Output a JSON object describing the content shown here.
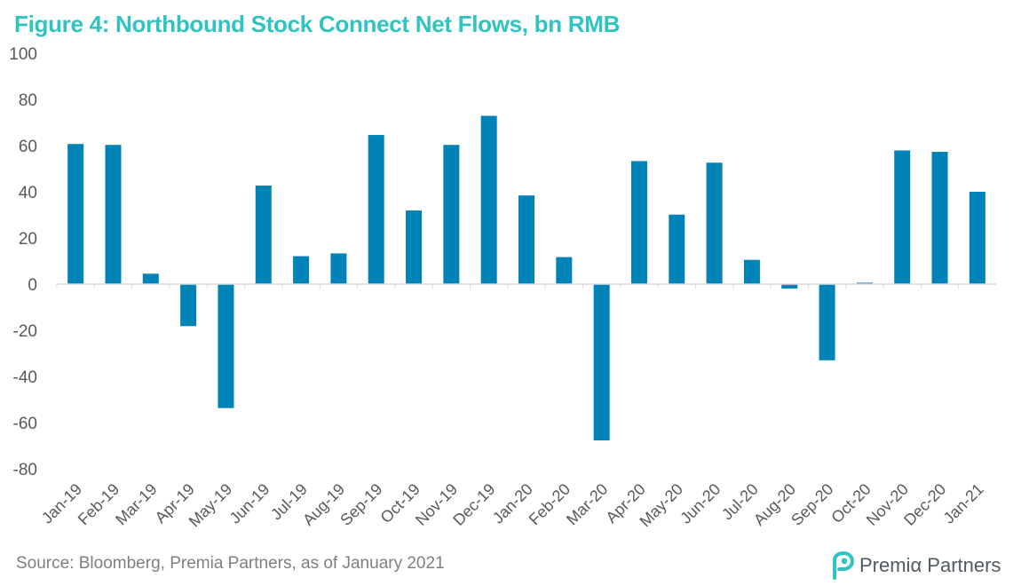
{
  "title": "Figure 4: Northbound Stock Connect Net Flows, bn RMB",
  "source": "Source: Bloomberg, Premia Partners, as of January 2021",
  "logo": {
    "text": "Premiα Partners",
    "icon": "premia-leaf-logo",
    "color": "#2ec4c4"
  },
  "colors": {
    "bar": "#0083b6",
    "title": "#2ec4c4",
    "axis_text": "#595959",
    "baseline": "#d9d9d9"
  },
  "chart_data": {
    "type": "bar",
    "title": "Figure 4: Northbound Stock Connect Net Flows, bn RMB",
    "xlabel": "",
    "ylabel": "",
    "ylim": [
      -80,
      100
    ],
    "yticks": [
      100,
      80,
      60,
      40,
      20,
      0,
      -20,
      -40,
      -60,
      -80
    ],
    "grid": false,
    "categories": [
      "Jan-19",
      "Feb-19",
      "Mar-19",
      "Apr-19",
      "May-19",
      "Jun-19",
      "Jul-19",
      "Aug-19",
      "Sep-19",
      "Oct-19",
      "Nov-19",
      "Dec-19",
      "Jan-20",
      "Feb-20",
      "Mar-20",
      "Apr-20",
      "May-20",
      "Jun-20",
      "Jul-20",
      "Aug-20",
      "Sep-20",
      "Oct-20",
      "Nov-20",
      "Dec-20",
      "Jan-21"
    ],
    "values": [
      60.7,
      60.3,
      4.5,
      -18.2,
      -53.7,
      42.7,
      12.1,
      13.3,
      64.6,
      31.9,
      60.3,
      72.9,
      38.4,
      11.7,
      -67.7,
      53.3,
      30.1,
      52.6,
      10.5,
      -1.9,
      -33.0,
      0.6,
      57.9,
      57.3,
      40.0
    ]
  }
}
